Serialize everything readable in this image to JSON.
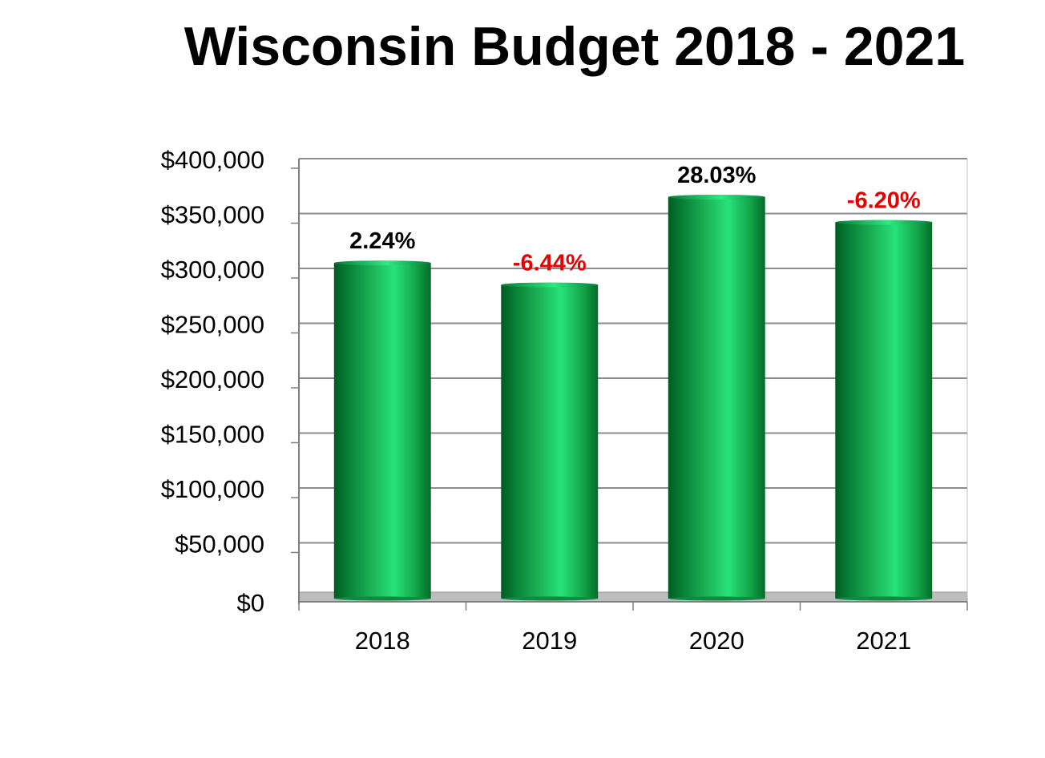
{
  "chart_data": {
    "type": "bar",
    "title": "Wisconsin Budget 2018 - 2021",
    "categories": [
      "2018",
      "2019",
      "2020",
      "2021"
    ],
    "values": [
      305000,
      285000,
      365000,
      342000
    ],
    "data_labels": [
      "2.24%",
      "-6.44%",
      "28.03%",
      "-6.20%"
    ],
    "data_label_colors": [
      "#000000",
      "#e60000",
      "#000000",
      "#e60000"
    ],
    "y_ticks": [
      "$0",
      "$50,000",
      "$100,000",
      "$150,000",
      "$200,000",
      "$250,000",
      "$300,000",
      "$350,000",
      "$400,000"
    ],
    "ylim": [
      0,
      400000
    ],
    "grid": true,
    "bar_color": "#1db954",
    "floor_color": "#bdbdbd"
  }
}
